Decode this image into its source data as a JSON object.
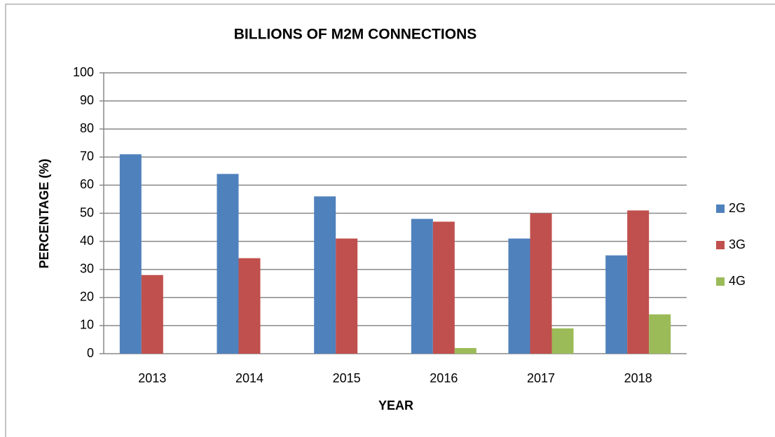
{
  "chart_data": {
    "type": "bar",
    "title": "BILLIONS OF M2M CONNECTIONS",
    "x_label": "YEAR",
    "y_label": "PERCENTAGE (%)",
    "categories": [
      "2013",
      "2014",
      "2015",
      "2016",
      "2017",
      "2018"
    ],
    "series": [
      {
        "name": "2G",
        "color": "#4f81bd",
        "values": [
          71,
          64,
          56,
          48,
          41,
          35
        ]
      },
      {
        "name": "3G",
        "color": "#c0504d",
        "values": [
          28,
          34,
          41,
          47,
          50,
          51
        ]
      },
      {
        "name": "4G",
        "color": "#9bbb59",
        "values": [
          0,
          0,
          0,
          2,
          9,
          14
        ]
      }
    ],
    "ylim": [
      0,
      100
    ],
    "yticks": [
      0,
      10,
      20,
      30,
      40,
      50,
      60,
      70,
      80,
      90,
      100
    ],
    "grid": true,
    "legend": "right"
  }
}
